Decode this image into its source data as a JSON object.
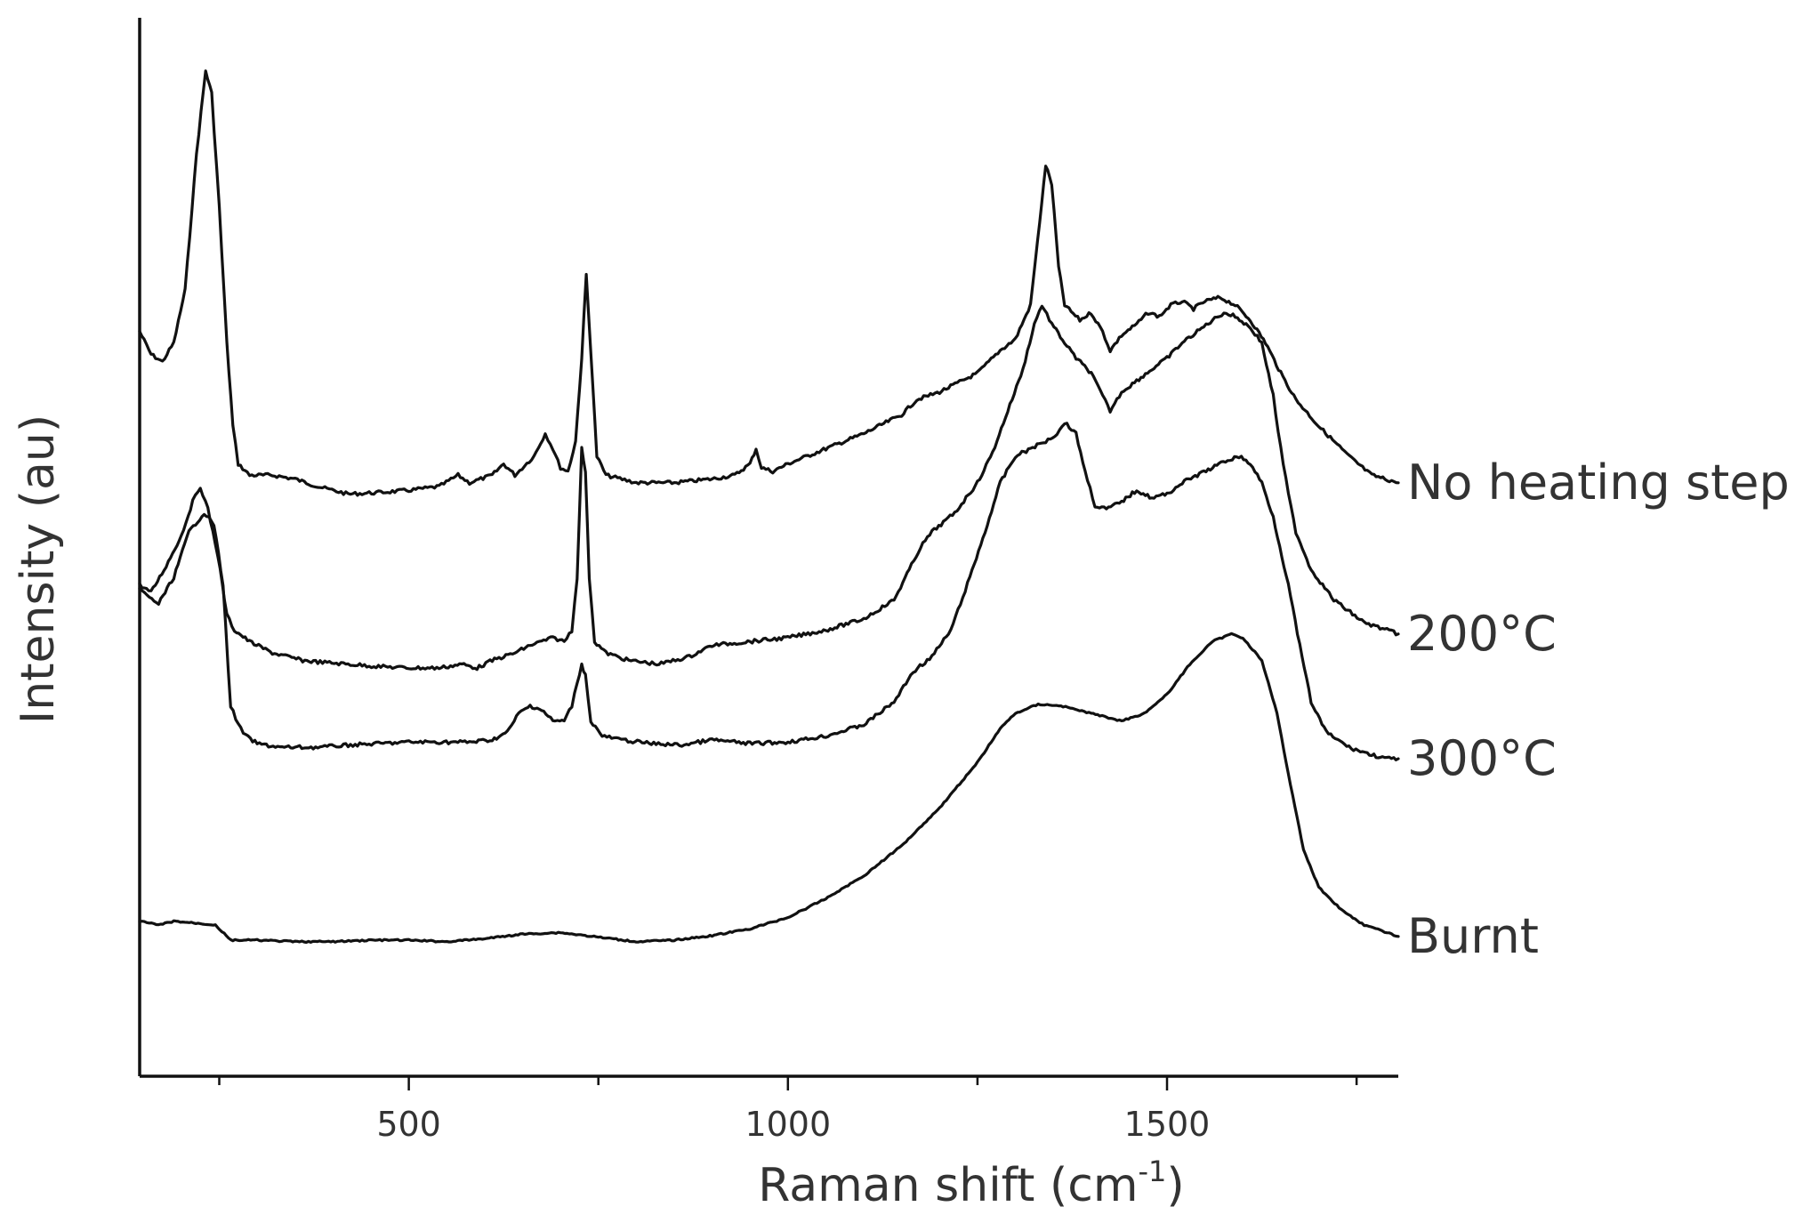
{
  "chart_data": {
    "type": "line",
    "xlabel_main": "Raman shift (cm",
    "xlabel_sup": "-1",
    "xlabel_end": ")",
    "ylabel": "Intensity (au)",
    "xlim": [
      145,
      1805
    ],
    "ylim": [
      -1.0,
      13.0
    ],
    "grid": false,
    "x_ticks": [
      500,
      1000,
      1500
    ],
    "x_minor_ticks": [
      250,
      750,
      1250,
      1750
    ],
    "series_color": "#111111",
    "series": [
      {
        "name": "No heating step",
        "points": [
          [
            145,
            8.85
          ],
          [
            160,
            8.55
          ],
          [
            175,
            8.45
          ],
          [
            190,
            8.7
          ],
          [
            205,
            9.4
          ],
          [
            220,
            11.2
          ],
          [
            232,
            12.3
          ],
          [
            240,
            12.0
          ],
          [
            250,
            10.5
          ],
          [
            260,
            8.7
          ],
          [
            268,
            7.6
          ],
          [
            275,
            7.1
          ],
          [
            290,
            6.95
          ],
          [
            320,
            6.95
          ],
          [
            350,
            6.9
          ],
          [
            380,
            6.8
          ],
          [
            420,
            6.7
          ],
          [
            460,
            6.72
          ],
          [
            500,
            6.75
          ],
          [
            540,
            6.8
          ],
          [
            565,
            6.95
          ],
          [
            580,
            6.85
          ],
          [
            610,
            6.95
          ],
          [
            625,
            7.1
          ],
          [
            640,
            6.95
          ],
          [
            665,
            7.2
          ],
          [
            680,
            7.5
          ],
          [
            690,
            7.3
          ],
          [
            700,
            7.05
          ],
          [
            710,
            7.0
          ],
          [
            720,
            7.4
          ],
          [
            728,
            8.5
          ],
          [
            734,
            9.6
          ],
          [
            740,
            8.6
          ],
          [
            748,
            7.2
          ],
          [
            760,
            6.95
          ],
          [
            800,
            6.85
          ],
          [
            850,
            6.85
          ],
          [
            900,
            6.9
          ],
          [
            930,
            6.95
          ],
          [
            950,
            7.1
          ],
          [
            958,
            7.3
          ],
          [
            965,
            7.05
          ],
          [
            980,
            7.0
          ],
          [
            1000,
            7.1
          ],
          [
            1050,
            7.3
          ],
          [
            1100,
            7.5
          ],
          [
            1150,
            7.75
          ],
          [
            1170,
            7.95
          ],
          [
            1200,
            8.05
          ],
          [
            1250,
            8.3
          ],
          [
            1280,
            8.6
          ],
          [
            1300,
            8.75
          ],
          [
            1320,
            9.2
          ],
          [
            1332,
            10.3
          ],
          [
            1340,
            11.05
          ],
          [
            1348,
            10.8
          ],
          [
            1357,
            9.7
          ],
          [
            1365,
            9.2
          ],
          [
            1385,
            9.0
          ],
          [
            1400,
            9.1
          ],
          [
            1415,
            8.85
          ],
          [
            1425,
            8.6
          ],
          [
            1440,
            8.8
          ],
          [
            1460,
            8.95
          ],
          [
            1475,
            9.1
          ],
          [
            1490,
            9.05
          ],
          [
            1505,
            9.2
          ],
          [
            1520,
            9.25
          ],
          [
            1535,
            9.15
          ],
          [
            1550,
            9.25
          ],
          [
            1570,
            9.3
          ],
          [
            1590,
            9.2
          ],
          [
            1610,
            9.0
          ],
          [
            1630,
            8.7
          ],
          [
            1650,
            8.3
          ],
          [
            1670,
            7.95
          ],
          [
            1700,
            7.6
          ],
          [
            1740,
            7.2
          ],
          [
            1770,
            6.95
          ],
          [
            1805,
            6.85
          ]
        ]
      },
      {
        "name": "200°C",
        "points": [
          [
            145,
            5.5
          ],
          [
            160,
            5.4
          ],
          [
            180,
            5.75
          ],
          [
            200,
            6.15
          ],
          [
            215,
            6.6
          ],
          [
            225,
            6.8
          ],
          [
            235,
            6.5
          ],
          [
            248,
            5.9
          ],
          [
            260,
            5.1
          ],
          [
            270,
            4.9
          ],
          [
            290,
            4.75
          ],
          [
            320,
            4.6
          ],
          [
            340,
            4.55
          ],
          [
            360,
            4.5
          ],
          [
            380,
            4.48
          ],
          [
            420,
            4.45
          ],
          [
            460,
            4.42
          ],
          [
            500,
            4.4
          ],
          [
            540,
            4.4
          ],
          [
            570,
            4.45
          ],
          [
            590,
            4.4
          ],
          [
            610,
            4.5
          ],
          [
            640,
            4.6
          ],
          [
            660,
            4.7
          ],
          [
            690,
            4.8
          ],
          [
            705,
            4.75
          ],
          [
            715,
            4.9
          ],
          [
            722,
            5.6
          ],
          [
            728,
            7.3
          ],
          [
            733,
            7.0
          ],
          [
            738,
            5.6
          ],
          [
            745,
            4.75
          ],
          [
            760,
            4.6
          ],
          [
            790,
            4.5
          ],
          [
            830,
            4.45
          ],
          [
            870,
            4.55
          ],
          [
            900,
            4.7
          ],
          [
            950,
            4.75
          ],
          [
            1000,
            4.8
          ],
          [
            1050,
            4.9
          ],
          [
            1100,
            5.05
          ],
          [
            1140,
            5.3
          ],
          [
            1160,
            5.7
          ],
          [
            1175,
            6.0
          ],
          [
            1190,
            6.2
          ],
          [
            1220,
            6.45
          ],
          [
            1250,
            6.85
          ],
          [
            1270,
            7.25
          ],
          [
            1290,
            7.8
          ],
          [
            1310,
            8.35
          ],
          [
            1325,
            8.95
          ],
          [
            1335,
            9.2
          ],
          [
            1348,
            8.95
          ],
          [
            1365,
            8.7
          ],
          [
            1380,
            8.5
          ],
          [
            1400,
            8.3
          ],
          [
            1415,
            8.0
          ],
          [
            1425,
            7.8
          ],
          [
            1440,
            8.05
          ],
          [
            1460,
            8.2
          ],
          [
            1480,
            8.35
          ],
          [
            1500,
            8.5
          ],
          [
            1520,
            8.7
          ],
          [
            1540,
            8.85
          ],
          [
            1560,
            9.0
          ],
          [
            1575,
            9.1
          ],
          [
            1590,
            9.05
          ],
          [
            1610,
            8.9
          ],
          [
            1625,
            8.7
          ],
          [
            1640,
            8.0
          ],
          [
            1650,
            7.3
          ],
          [
            1660,
            6.7
          ],
          [
            1670,
            6.2
          ],
          [
            1690,
            5.7
          ],
          [
            1720,
            5.3
          ],
          [
            1760,
            5.0
          ],
          [
            1790,
            4.9
          ],
          [
            1805,
            4.85
          ]
        ]
      },
      {
        "name": "300°C",
        "points": [
          [
            145,
            5.45
          ],
          [
            155,
            5.35
          ],
          [
            170,
            5.25
          ],
          [
            190,
            5.6
          ],
          [
            210,
            6.2
          ],
          [
            230,
            6.45
          ],
          [
            243,
            6.3
          ],
          [
            255,
            5.5
          ],
          [
            265,
            3.9
          ],
          [
            275,
            3.65
          ],
          [
            285,
            3.5
          ],
          [
            300,
            3.4
          ],
          [
            330,
            3.35
          ],
          [
            350,
            3.35
          ],
          [
            380,
            3.35
          ],
          [
            420,
            3.38
          ],
          [
            460,
            3.4
          ],
          [
            500,
            3.42
          ],
          [
            540,
            3.42
          ],
          [
            580,
            3.42
          ],
          [
            610,
            3.45
          ],
          [
            630,
            3.55
          ],
          [
            645,
            3.8
          ],
          [
            660,
            3.9
          ],
          [
            675,
            3.85
          ],
          [
            690,
            3.7
          ],
          [
            705,
            3.7
          ],
          [
            715,
            3.9
          ],
          [
            722,
            4.2
          ],
          [
            728,
            4.45
          ],
          [
            733,
            4.3
          ],
          [
            740,
            3.7
          ],
          [
            755,
            3.5
          ],
          [
            780,
            3.45
          ],
          [
            820,
            3.4
          ],
          [
            860,
            3.38
          ],
          [
            900,
            3.45
          ],
          [
            950,
            3.4
          ],
          [
            1000,
            3.42
          ],
          [
            1050,
            3.5
          ],
          [
            1100,
            3.65
          ],
          [
            1140,
            3.95
          ],
          [
            1165,
            4.35
          ],
          [
            1190,
            4.55
          ],
          [
            1215,
            4.9
          ],
          [
            1240,
            5.6
          ],
          [
            1260,
            6.2
          ],
          [
            1280,
            6.85
          ],
          [
            1300,
            7.2
          ],
          [
            1320,
            7.3
          ],
          [
            1340,
            7.4
          ],
          [
            1355,
            7.5
          ],
          [
            1365,
            7.65
          ],
          [
            1380,
            7.5
          ],
          [
            1392,
            7.0
          ],
          [
            1405,
            6.55
          ],
          [
            1420,
            6.5
          ],
          [
            1440,
            6.6
          ],
          [
            1460,
            6.75
          ],
          [
            1480,
            6.65
          ],
          [
            1500,
            6.7
          ],
          [
            1520,
            6.85
          ],
          [
            1540,
            6.95
          ],
          [
            1560,
            7.05
          ],
          [
            1580,
            7.15
          ],
          [
            1595,
            7.2
          ],
          [
            1610,
            7.1
          ],
          [
            1625,
            6.85
          ],
          [
            1640,
            6.4
          ],
          [
            1660,
            5.5
          ],
          [
            1675,
            4.7
          ],
          [
            1690,
            3.95
          ],
          [
            1710,
            3.55
          ],
          [
            1740,
            3.35
          ],
          [
            1770,
            3.25
          ],
          [
            1790,
            3.2
          ],
          [
            1805,
            3.2
          ]
        ]
      },
      {
        "name": "Burnt",
        "points": [
          [
            145,
            1.05
          ],
          [
            170,
            1.0
          ],
          [
            190,
            1.05
          ],
          [
            225,
            1.02
          ],
          [
            245,
            1.0
          ],
          [
            265,
            0.8
          ],
          [
            300,
            0.8
          ],
          [
            350,
            0.78
          ],
          [
            400,
            0.78
          ],
          [
            450,
            0.8
          ],
          [
            500,
            0.8
          ],
          [
            550,
            0.78
          ],
          [
            600,
            0.82
          ],
          [
            650,
            0.88
          ],
          [
            700,
            0.9
          ],
          [
            750,
            0.84
          ],
          [
            800,
            0.78
          ],
          [
            850,
            0.8
          ],
          [
            900,
            0.86
          ],
          [
            950,
            0.95
          ],
          [
            1000,
            1.1
          ],
          [
            1050,
            1.35
          ],
          [
            1100,
            1.65
          ],
          [
            1150,
            2.05
          ],
          [
            1200,
            2.55
          ],
          [
            1250,
            3.15
          ],
          [
            1280,
            3.6
          ],
          [
            1300,
            3.8
          ],
          [
            1330,
            3.92
          ],
          [
            1360,
            3.9
          ],
          [
            1400,
            3.8
          ],
          [
            1420,
            3.75
          ],
          [
            1440,
            3.7
          ],
          [
            1470,
            3.8
          ],
          [
            1500,
            4.05
          ],
          [
            1530,
            4.45
          ],
          [
            1560,
            4.75
          ],
          [
            1585,
            4.85
          ],
          [
            1600,
            4.8
          ],
          [
            1625,
            4.5
          ],
          [
            1645,
            3.8
          ],
          [
            1660,
            3.0
          ],
          [
            1680,
            2.0
          ],
          [
            1700,
            1.5
          ],
          [
            1730,
            1.2
          ],
          [
            1760,
            1.0
          ],
          [
            1790,
            0.9
          ],
          [
            1805,
            0.85
          ]
        ]
      }
    ]
  }
}
